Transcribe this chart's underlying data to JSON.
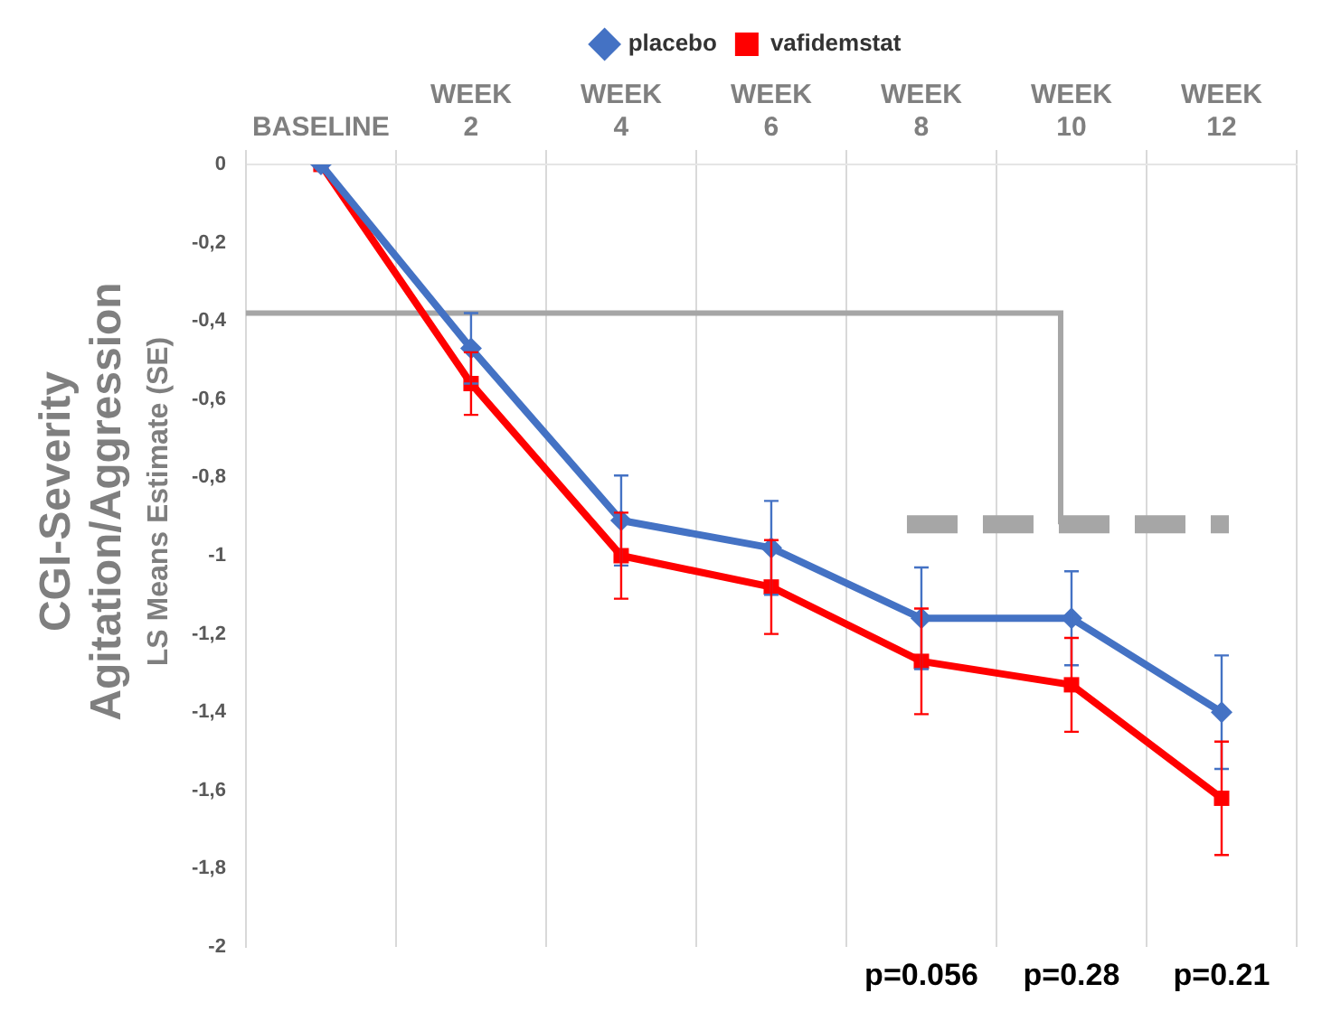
{
  "chart_data": {
    "type": "line",
    "ylabel": "CGI-Severity\nAgitation/Aggression\nLS Means Estimate (SE)",
    "categories": [
      "BASELINE",
      "WEEK 2",
      "WEEK 4",
      "WEEK 6",
      "WEEK 8",
      "WEEK 10",
      "WEEK 12"
    ],
    "series": [
      {
        "name": "placebo",
        "color": "#4472c4",
        "values": [
          0,
          -0.47,
          -0.91,
          -0.98,
          -1.16,
          -1.16,
          -1.4
        ],
        "errors": [
          null,
          0.09,
          0.115,
          0.12,
          0.13,
          0.12,
          0.145
        ],
        "marker": "diamond"
      },
      {
        "name": "vafidemstat",
        "color": "#ff0000",
        "values": [
          0,
          -0.56,
          -1.0,
          -1.08,
          -1.27,
          -1.33,
          -1.62
        ],
        "errors": [
          null,
          0.08,
          0.11,
          0.12,
          0.135,
          0.12,
          0.145
        ],
        "marker": "square"
      }
    ],
    "ylim": [
      -2,
      0
    ],
    "yticks": [
      {
        "value": -2,
        "label": "-2"
      },
      {
        "value": -1.8,
        "label": "-1,8"
      },
      {
        "value": -1.6,
        "label": "-1,6"
      },
      {
        "value": -1.4,
        "label": "-1,4"
      },
      {
        "value": -1.2,
        "label": "-1,2"
      },
      {
        "value": -1,
        "label": "-1"
      },
      {
        "value": -0.8,
        "label": "-0,8"
      },
      {
        "value": -0.6,
        "label": "-0,6"
      },
      {
        "value": -0.4,
        "label": "-0,4"
      },
      {
        "value": -0.2,
        "label": "-0,2"
      },
      {
        "value": 0,
        "label": "0"
      }
    ],
    "grid": "x",
    "legend": "top",
    "ref_lines": [
      {
        "axis": "y",
        "value": -0.38,
        "color": "#a6a6a6",
        "line_style": "solid"
      },
      {
        "axis": "y",
        "value": -0.92,
        "color": "#a6a6a6",
        "line_style": "dashed"
      }
    ],
    "annotations": [
      "p=0.056",
      "p=0.28",
      "p=0.21"
    ]
  }
}
